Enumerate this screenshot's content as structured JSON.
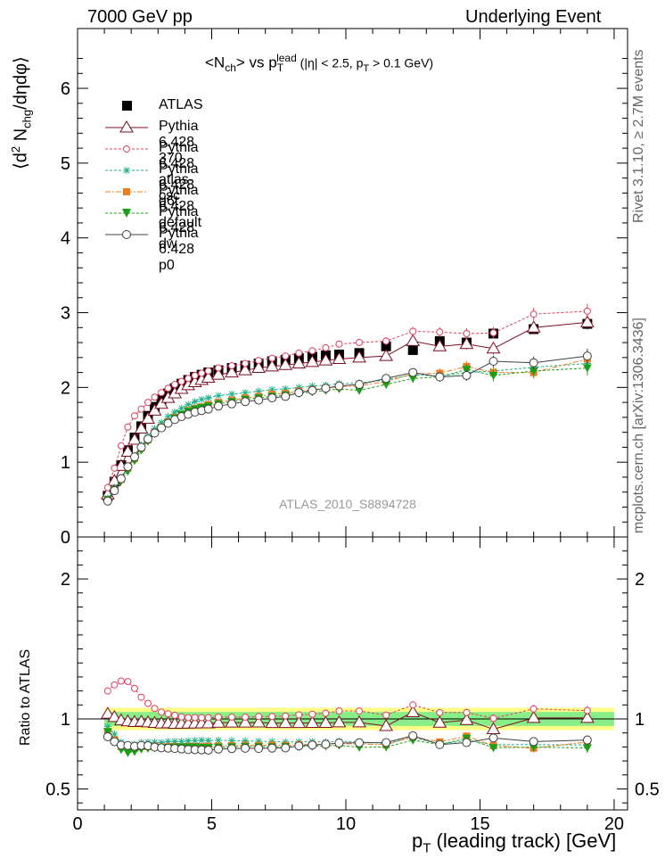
{
  "header": {
    "left": "7000 GeV pp",
    "right": "Underlying Event"
  },
  "side_labels": {
    "rivet": "Rivet 3.1.10,  ≥ 2.7M events",
    "mcplots": "mcplots.cern.ch [arXiv:1306.3436]"
  },
  "watermark": "ATLAS_2010_S8894728",
  "colors": {
    "ATLAS": "#000000",
    "p370": "#7b0f25",
    "atlascsc": "#e0405e",
    "d6t": "#1fb08a",
    "default": "#f07c20",
    "dw": "#18a018",
    "p0": "#404040",
    "band_inner": "#88ee88",
    "band_outer": "#ffff88"
  },
  "chart_data": [
    {
      "type": "scatter",
      "title": "<N_ch> vs p_T^lead (|η| < 2.5, p_T > 0.1 GeV)",
      "title_parts": {
        "pre": "<N",
        "sub1": "ch",
        "mid": "> vs p",
        "sub2": "T",
        "sup2": "lead",
        "post": " (|η| < 2.5, p",
        "sub3": "T",
        "post2": " > 0.1 GeV)"
      },
      "ylabel": "⟨d² N_chg/dηdφ⟩",
      "ylabel_parts": {
        "a": "⟨d",
        "sup": "2",
        "b": " N",
        "sub": "chg",
        "c": "/dηdφ⟩"
      },
      "xlim": [
        0,
        20.5
      ],
      "ylim": [
        0,
        6.8
      ],
      "yticks": [
        0,
        1,
        2,
        3,
        4,
        5,
        6
      ],
      "x": [
        1.125,
        1.375,
        1.625,
        1.875,
        2.125,
        2.375,
        2.625,
        2.875,
        3.125,
        3.375,
        3.625,
        3.875,
        4.125,
        4.375,
        4.625,
        4.875,
        5.25,
        5.75,
        6.25,
        6.75,
        7.25,
        7.75,
        8.25,
        8.75,
        9.25,
        9.75,
        10.5,
        11.5,
        12.5,
        13.5,
        14.5,
        15.5,
        17.0,
        19.0
      ],
      "series": [
        {
          "name": "ATLAS",
          "key": "ATLAS",
          "marker": "square",
          "line": "none",
          "values": [
            0.55,
            0.74,
            0.96,
            1.16,
            1.33,
            1.48,
            1.62,
            1.74,
            1.84,
            1.92,
            1.99,
            2.05,
            2.1,
            2.14,
            2.17,
            2.2,
            2.23,
            2.26,
            2.29,
            2.32,
            2.35,
            2.37,
            2.39,
            2.41,
            2.43,
            2.44,
            2.46,
            2.55,
            2.5,
            2.62,
            2.6,
            2.72,
            2.78,
            2.85
          ]
        },
        {
          "name": "Pythia 6.428 370",
          "key": "p370",
          "marker": "triangle-open",
          "line": "solid",
          "values": [
            0.57,
            0.75,
            0.95,
            1.14,
            1.3,
            1.45,
            1.58,
            1.69,
            1.78,
            1.86,
            1.92,
            1.98,
            2.03,
            2.07,
            2.1,
            2.13,
            2.17,
            2.2,
            2.23,
            2.26,
            2.28,
            2.3,
            2.32,
            2.34,
            2.36,
            2.38,
            2.4,
            2.42,
            2.62,
            2.55,
            2.58,
            2.52,
            2.8,
            2.87
          ]
        },
        {
          "name": "Pythia 6.428 atlas-csc",
          "key": "atlascsc",
          "marker": "circle-open-small",
          "line": "dashed",
          "values": [
            0.66,
            0.92,
            1.22,
            1.47,
            1.62,
            1.71,
            1.8,
            1.87,
            1.93,
            1.99,
            2.04,
            2.08,
            2.12,
            2.16,
            2.19,
            2.22,
            2.26,
            2.29,
            2.32,
            2.36,
            2.39,
            2.42,
            2.46,
            2.49,
            2.53,
            2.58,
            2.6,
            2.62,
            2.75,
            2.74,
            2.72,
            2.73,
            2.98,
            3.02
          ]
        },
        {
          "name": "Pythia 6.428 d6t",
          "key": "d6t",
          "marker": "star",
          "line": "dashed",
          "values": [
            0.52,
            0.66,
            0.8,
            0.94,
            1.09,
            1.23,
            1.35,
            1.45,
            1.53,
            1.61,
            1.67,
            1.72,
            1.77,
            1.81,
            1.84,
            1.86,
            1.89,
            1.91,
            1.93,
            1.95,
            1.97,
            1.98,
            2.0,
            2.02,
            2.03,
            2.05,
            2.06,
            2.1,
            2.17,
            2.15,
            2.2,
            2.22,
            2.27,
            2.32
          ]
        },
        {
          "name": "Pythia 6.428 default",
          "key": "default",
          "marker": "square-small",
          "line": "dashdot",
          "values": [
            0.5,
            0.63,
            0.77,
            0.92,
            1.05,
            1.19,
            1.3,
            1.4,
            1.47,
            1.54,
            1.6,
            1.64,
            1.69,
            1.72,
            1.74,
            1.77,
            1.8,
            1.83,
            1.86,
            1.88,
            1.91,
            1.92,
            1.95,
            1.97,
            1.99,
            2.01,
            2.02,
            2.08,
            2.18,
            2.19,
            2.28,
            2.2,
            2.2,
            2.38
          ]
        },
        {
          "name": "Pythia 6.428 dw",
          "key": "dw",
          "marker": "triangle-down",
          "line": "dashed",
          "values": [
            0.5,
            0.62,
            0.75,
            0.88,
            1.02,
            1.16,
            1.28,
            1.38,
            1.46,
            1.53,
            1.59,
            1.64,
            1.68,
            1.71,
            1.73,
            1.75,
            1.78,
            1.81,
            1.84,
            1.86,
            1.88,
            1.9,
            1.92,
            1.94,
            1.96,
            1.98,
            1.96,
            2.04,
            2.12,
            2.14,
            2.24,
            2.16,
            2.22,
            2.26
          ]
        },
        {
          "name": "Pythia 6.428 p0",
          "key": "p0",
          "marker": "circle-open",
          "line": "solid",
          "values": [
            0.48,
            0.62,
            0.78,
            0.94,
            1.07,
            1.2,
            1.31,
            1.39,
            1.46,
            1.52,
            1.57,
            1.61,
            1.64,
            1.67,
            1.69,
            1.71,
            1.75,
            1.78,
            1.81,
            1.83,
            1.86,
            1.88,
            1.93,
            1.96,
            1.99,
            2.02,
            2.04,
            2.12,
            2.2,
            2.14,
            2.16,
            2.35,
            2.33,
            2.42
          ]
        }
      ]
    },
    {
      "type": "scatter",
      "ylabel": "Ratio to ATLAS",
      "xlabel": "p_T (leading track) [GeV]",
      "xlabel_parts": {
        "a": "p",
        "sub": "T",
        "b": " (leading track) [GeV]"
      },
      "xlim": [
        0,
        20.5
      ],
      "ylim": [
        0.35,
        2.3
      ],
      "yticks": [
        0.5,
        1,
        2
      ],
      "xticks": [
        0,
        5,
        10,
        15,
        20
      ],
      "band_inner": [
        0.95,
        1.05
      ],
      "band_outer": [
        0.92,
        1.08
      ]
    }
  ]
}
